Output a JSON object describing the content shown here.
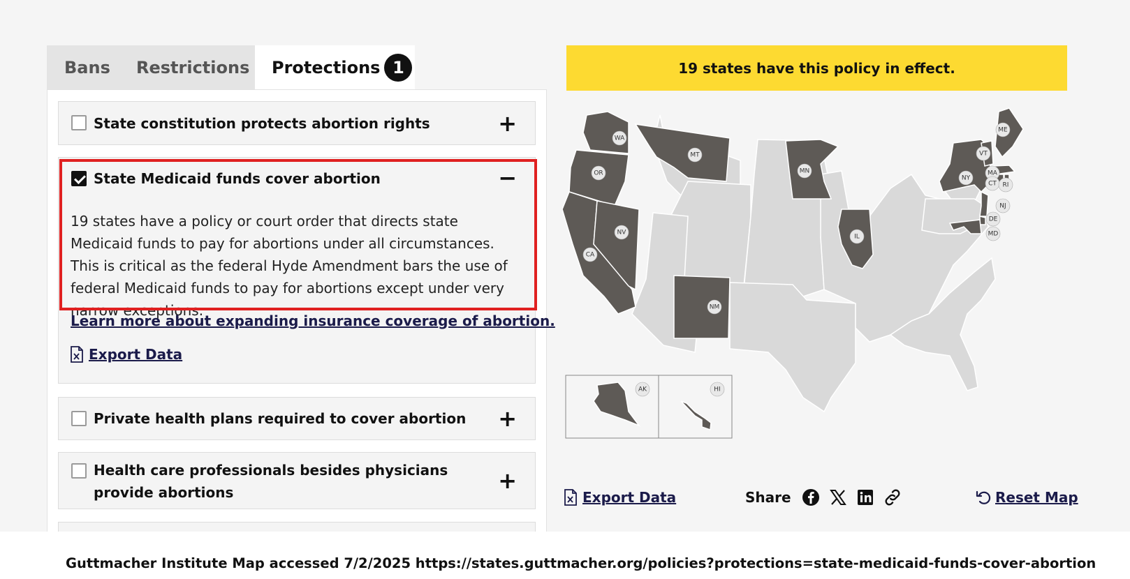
{
  "tabs": [
    {
      "label": "Bans"
    },
    {
      "label": "Restrictions"
    },
    {
      "label": "Protections",
      "badge": "1",
      "active": true
    }
  ],
  "policies": [
    {
      "label": "State constitution protects abortion rights",
      "checked": false,
      "toggle": "+"
    },
    {
      "label": "State Medicaid funds cover abortion",
      "checked": true,
      "toggle": "−",
      "description": "19 states have a policy or court order that directs state Medicaid funds to pay for abortions under all circumstances. This is critical as the federal Hyde Amendment bars the use of federal Medicaid funds to pay for abortions except under very narrow exceptions.",
      "learn_more": "Learn more about expanding insurance coverage of abortion.",
      "export_label": "Export Data"
    },
    {
      "label": "Private health plans required to cover abortion",
      "checked": false,
      "toggle": "+"
    },
    {
      "label": "Health care professionals besides physicians provide abortions",
      "checked": false,
      "toggle": "+"
    }
  ],
  "banner": {
    "text": "19 states have this policy in effect.",
    "color": "#fdda31"
  },
  "map": {
    "highlight_color": "#5e5a56",
    "default_color": "#d9d9d9",
    "states_in_effect": [
      "WA",
      "OR",
      "CA",
      "NV",
      "MT",
      "NM",
      "MN",
      "IL",
      "NY",
      "VT",
      "ME",
      "MA",
      "CT",
      "RI",
      "NJ",
      "DE",
      "MD",
      "AK",
      "HI"
    ],
    "labels": [
      "WA",
      "OR",
      "CA",
      "NV",
      "MT",
      "NM",
      "MN",
      "IL",
      "NY",
      "VT",
      "ME",
      "MA",
      "CT",
      "RI",
      "NJ",
      "DE",
      "MD",
      "AK",
      "HI"
    ]
  },
  "footer": {
    "export_label": "Export Data",
    "share_label": "Share",
    "share_icons": [
      "facebook-icon",
      "x-icon",
      "linkedin-icon",
      "link-icon"
    ],
    "reset_label": "Reset Map"
  },
  "caption": "Guttmacher Institute Map accessed 7/2/2025 https://states.guttmacher.org/policies?protections=state-medicaid-funds-cover-abortion"
}
